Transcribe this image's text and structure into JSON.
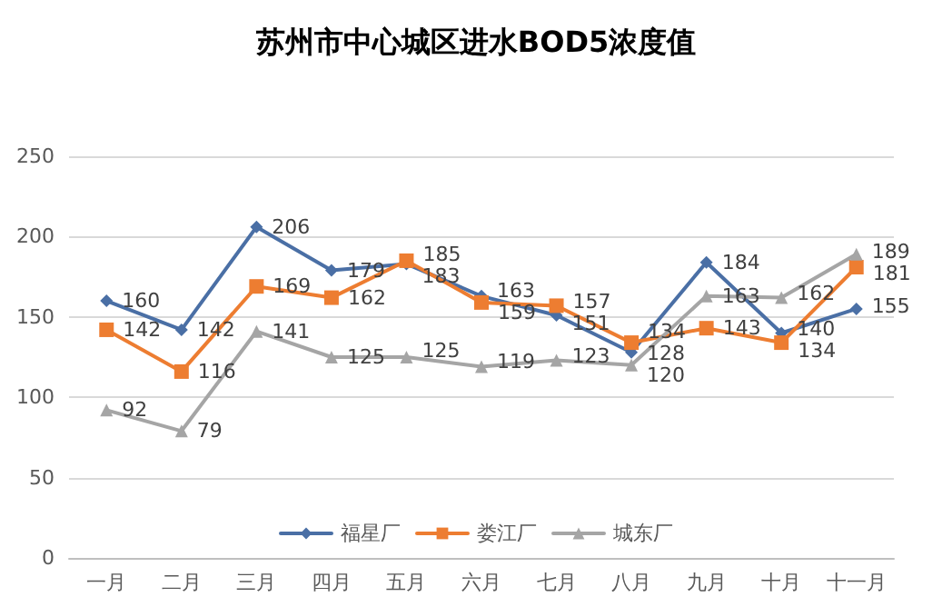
{
  "chart_data": {
    "type": "line",
    "title": "苏州市中心城区进水BOD5浓度值",
    "categories": [
      "一月",
      "二月",
      "三月",
      "四月",
      "五月",
      "六月",
      "七月",
      "八月",
      "九月",
      "十月",
      "十一月"
    ],
    "series": [
      {
        "name": "福星厂",
        "color": "#4a6fa5",
        "marker": "diamond",
        "values": [
          160,
          142,
          206,
          179,
          183,
          163,
          151,
          128,
          184,
          140,
          155
        ]
      },
      {
        "name": "娄江厂",
        "color": "#ed7d31",
        "marker": "square",
        "values": [
          142,
          116,
          169,
          162,
          185,
          159,
          157,
          134,
          143,
          134,
          181
        ]
      },
      {
        "name": "城东厂",
        "color": "#a5a5a5",
        "marker": "triangle",
        "values": [
          92,
          79,
          141,
          125,
          125,
          119,
          123,
          120,
          163,
          162,
          189
        ]
      }
    ],
    "ylim": [
      0,
      250
    ],
    "yticks": [
      0,
      50,
      100,
      150,
      200,
      250
    ],
    "grid": "y",
    "legend": "bottom",
    "data_labels": true
  }
}
